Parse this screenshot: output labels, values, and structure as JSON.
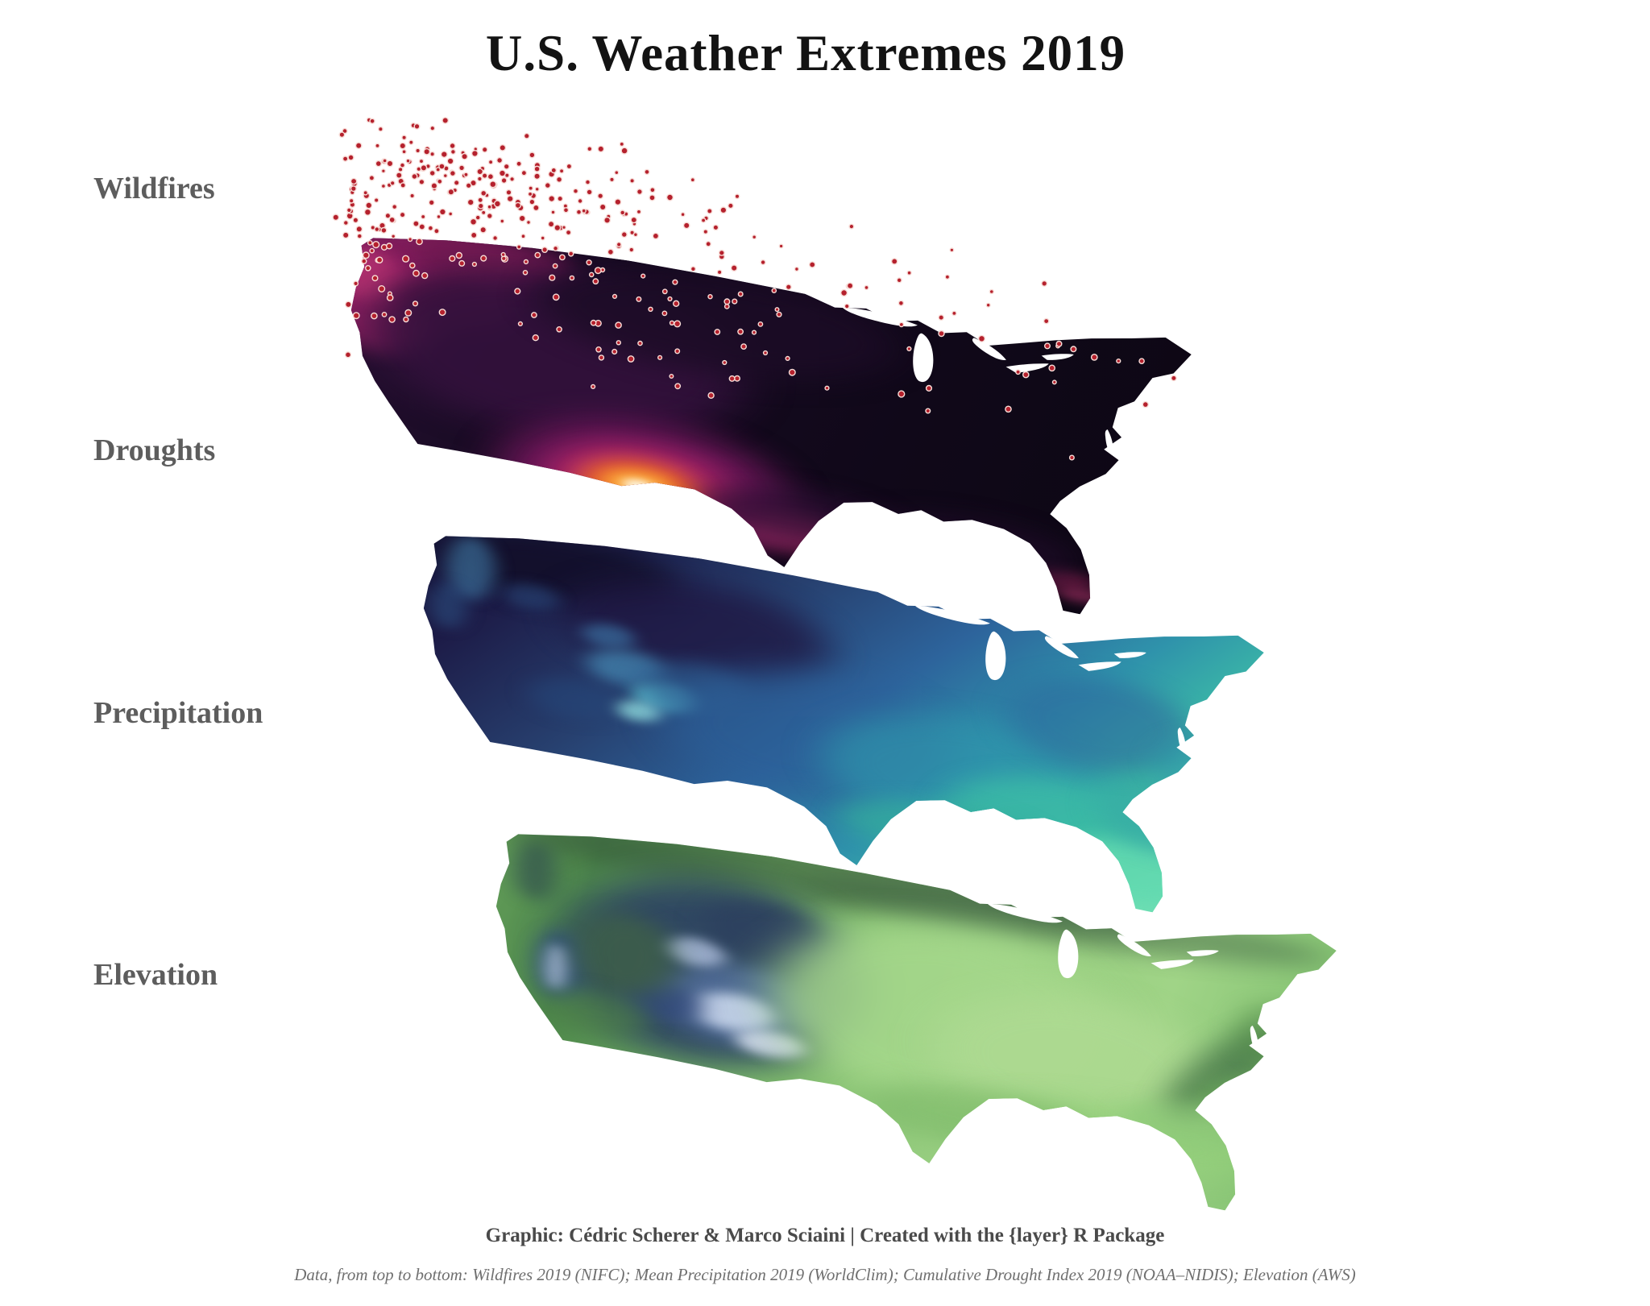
{
  "title": "U.S. Weather Extremes 2019",
  "labels": {
    "wildfires": "Wildfires",
    "droughts": "Droughts",
    "precipitation": "Precipitation",
    "elevation": "Elevation"
  },
  "captions": {
    "credit": "Graphic: Cédric Scherer & Marco Sciaini | Created with the {layer} R Package",
    "sources": "Data, from top to bottom: Wildfires 2019 (NIFC); Mean Precipitation 2019 (WorldClim); Cumulative Drought Index 2019 (NOAA–NIDIS); Elevation (AWS)"
  },
  "wildfires": {
    "dot_color": "#b5212d",
    "halo_color": "#f7ddd8",
    "seed": 42,
    "clusters": [
      [
        120,
        90,
        55,
        45,
        72
      ],
      [
        200,
        160,
        60,
        50,
        82
      ],
      [
        75,
        250,
        30,
        70,
        46
      ],
      [
        60,
        180,
        25,
        50,
        24
      ],
      [
        280,
        100,
        70,
        40,
        52
      ],
      [
        300,
        260,
        80,
        60,
        46
      ],
      [
        480,
        150,
        100,
        70,
        36
      ],
      [
        650,
        280,
        120,
        80,
        26
      ],
      [
        820,
        300,
        80,
        70,
        16
      ],
      [
        420,
        380,
        80,
        50,
        16
      ]
    ]
  },
  "map_layers": {
    "droughts": {
      "base": {
        "dir": [
          0,
          0,
          1,
          0.15
        ],
        "stops": [
          [
            0,
            "#2a1136"
          ],
          [
            0.35,
            "#170b22"
          ],
          [
            0.7,
            "#100819"
          ],
          [
            1,
            "#0d0714"
          ]
        ]
      },
      "blobs": [
        [
          120,
          80,
          115,
          70,
          "#8e2163",
          0.9,
          18
        ],
        [
          75,
          160,
          65,
          80,
          "#a3246b",
          0.85,
          16
        ],
        [
          190,
          55,
          85,
          40,
          "#731a52",
          0.85,
          14
        ],
        [
          55,
          110,
          35,
          45,
          "#c23a76",
          0.6,
          12
        ],
        [
          150,
          140,
          60,
          45,
          "#5a1548",
          0.8,
          14
        ],
        [
          260,
          200,
          200,
          140,
          "#33113c",
          0.9,
          26
        ],
        [
          430,
          110,
          190,
          85,
          "#1c0c26",
          0.85,
          22
        ],
        [
          358,
          408,
          155,
          110,
          "#6d175a",
          0.95,
          24
        ],
        [
          356,
          410,
          100,
          72,
          "#b02768",
          0.95,
          18
        ],
        [
          354,
          410,
          64,
          46,
          "#ef6c24",
          0.9,
          14
        ],
        [
          353,
          408,
          36,
          24,
          "#fcae3c",
          0.95,
          10
        ],
        [
          352,
          407,
          16,
          10,
          "#fdf4de",
          1,
          6
        ],
        [
          310,
          462,
          52,
          24,
          "#e05a28",
          0.7,
          12
        ],
        [
          395,
          470,
          60,
          28,
          "#b02768",
          0.65,
          14
        ],
        [
          520,
          450,
          62,
          32,
          "#b32f6e",
          0.75,
          14
        ],
        [
          585,
          472,
          46,
          24,
          "#a52861",
          0.7,
          12
        ],
        [
          645,
          448,
          36,
          18,
          "#8e2060",
          0.65,
          10
        ],
        [
          670,
          486,
          50,
          20,
          "#b32f6e",
          0.6,
          12
        ],
        [
          735,
          470,
          42,
          18,
          "#93215f",
          0.55,
          12
        ],
        [
          800,
          465,
          40,
          18,
          "#a52861",
          0.5,
          10
        ],
        [
          825,
          488,
          26,
          12,
          "#c23a76",
          0.5,
          8
        ],
        [
          520,
          420,
          110,
          45,
          "#2c0f33",
          0.7,
          18
        ],
        [
          700,
          430,
          120,
          50,
          "#1f0c28",
          0.7,
          18
        ]
      ]
    },
    "precipitation": {
      "base": {
        "dir": [
          0,
          0,
          1,
          0.45
        ],
        "stops": [
          [
            0,
            "#161233"
          ],
          [
            0.22,
            "#1d1c48"
          ],
          [
            0.42,
            "#27406f"
          ],
          [
            0.6,
            "#2d649c"
          ],
          [
            0.75,
            "#2f93ab"
          ],
          [
            0.88,
            "#3dbda6"
          ],
          [
            1,
            "#6fdfb4"
          ]
        ]
      },
      "blobs": [
        [
          180,
          75,
          130,
          60,
          "#120f28",
          0.85,
          20
        ],
        [
          330,
          150,
          140,
          85,
          "#1f1742",
          0.8,
          22
        ],
        [
          90,
          95,
          26,
          55,
          "#3c6f9a",
          0.7,
          10
        ],
        [
          68,
          165,
          20,
          40,
          "#2c4f80",
          0.6,
          10
        ],
        [
          155,
          130,
          30,
          22,
          "#2b4a7e",
          0.6,
          10
        ],
        [
          238,
          178,
          28,
          20,
          "#3a6fa0",
          0.7,
          9
        ],
        [
          258,
          228,
          42,
          30,
          "#4487b2",
          0.75,
          11
        ],
        [
          300,
          270,
          34,
          24,
          "#5cc0cf",
          0.85,
          9
        ],
        [
          273,
          300,
          25,
          17,
          "#93e0e0",
          0.8,
          8
        ],
        [
          330,
          245,
          58,
          42,
          "#2d5a8c",
          0.6,
          14
        ],
        [
          205,
          295,
          48,
          34,
          "#25477a",
          0.55,
          13
        ],
        [
          450,
          300,
          150,
          110,
          "#2c5f98",
          0.6,
          24
        ],
        [
          620,
          330,
          150,
          100,
          "#2f93ab",
          0.7,
          22
        ],
        [
          720,
          390,
          120,
          75,
          "#3cbda6",
          0.8,
          18
        ],
        [
          800,
          455,
          80,
          55,
          "#62d9b0",
          0.9,
          14
        ],
        [
          600,
          430,
          110,
          45,
          "#35ac9c",
          0.7,
          16
        ],
        [
          840,
          350,
          80,
          70,
          "#36a8a4",
          0.65,
          16
        ],
        [
          760,
          210,
          100,
          80,
          "#2d649c",
          0.55,
          18
        ],
        [
          880,
          260,
          60,
          60,
          "#2f93ab",
          0.5,
          14
        ]
      ]
    },
    "elevation": {
      "base": {
        "dir": [
          0,
          0,
          1,
          0.1
        ],
        "stops": [
          [
            0,
            "#6da65f"
          ],
          [
            0.18,
            "#4f8a4c"
          ],
          [
            0.38,
            "#7ab868"
          ],
          [
            0.6,
            "#96cd7f"
          ],
          [
            0.8,
            "#a0d487"
          ],
          [
            1,
            "#7fbf6e"
          ]
        ]
      },
      "blobs": [
        [
          400,
          42,
          350,
          50,
          "#2e4a36",
          0.5,
          20
        ],
        [
          640,
          60,
          280,
          40,
          "#3a5c40",
          0.45,
          18
        ],
        [
          270,
          235,
          160,
          160,
          "#2b3f63",
          0.9,
          26
        ],
        [
          300,
          285,
          80,
          68,
          "#55719f",
          0.8,
          16
        ],
        [
          297,
          300,
          45,
          32,
          "#cfdcf2",
          0.85,
          10
        ],
        [
          255,
          205,
          32,
          24,
          "#b9c9e8",
          0.75,
          9
        ],
        [
          338,
          345,
          38,
          22,
          "#e2eaf8",
          0.8,
          9
        ],
        [
          225,
          300,
          42,
          30,
          "#31487a",
          0.7,
          12
        ],
        [
          320,
          150,
          62,
          50,
          "#2c3f5e",
          0.75,
          14
        ],
        [
          112,
          262,
          26,
          62,
          "#33507e",
          0.8,
          12
        ],
        [
          108,
          266,
          12,
          40,
          "#c7d6ee",
          0.6,
          8
        ],
        [
          82,
          105,
          22,
          52,
          "#2e4a4e",
          0.65,
          12
        ],
        [
          180,
          228,
          55,
          72,
          "#44693f",
          0.6,
          16
        ],
        [
          150,
          335,
          58,
          38,
          "#4d8047",
          0.6,
          14
        ],
        [
          520,
          255,
          185,
          155,
          "#a6d88c",
          0.85,
          28
        ],
        [
          660,
          305,
          150,
          115,
          "#aeda92",
          0.8,
          24
        ],
        [
          700,
          425,
          150,
          60,
          "#95d07c",
          0.75,
          20
        ],
        [
          560,
          420,
          120,
          50,
          "#7cb868",
          0.6,
          18
        ],
        [
          820,
          280,
          34,
          110,
          "#3c6b41",
          0.7,
          16,
          32
        ],
        [
          845,
          335,
          55,
          45,
          "#6fae5f",
          0.6,
          14
        ],
        [
          875,
          205,
          48,
          55,
          "#58924e",
          0.5,
          14
        ],
        [
          780,
          380,
          70,
          40,
          "#8cc878",
          0.6,
          14
        ]
      ]
    }
  }
}
